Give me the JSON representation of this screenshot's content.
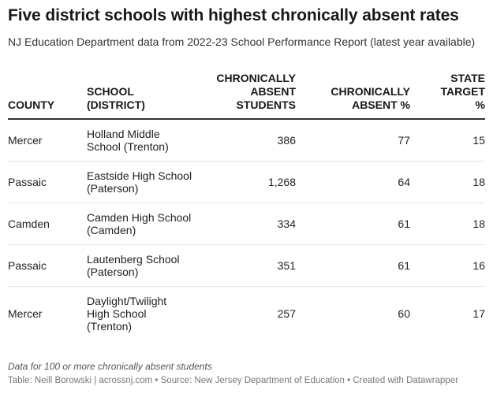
{
  "title": "Five district schools with highest chronically absent rates",
  "subtitle": "NJ Education Department data from 2022-23 School Performance Report (latest year available)",
  "table": {
    "headers": {
      "county": "COUNTY",
      "school": "SCHOOL (DISTRICT)",
      "absent_students": "CHRONICALLY ABSENT STUDENTS",
      "absent_pct": "CHRONICALLY ABSENT %",
      "state_target": "STATE TARGET %"
    },
    "rows": [
      {
        "county": "Mercer",
        "school": "Holland Middle School (Trenton)",
        "absent_students": "386",
        "absent_pct": "77",
        "state_target": "15"
      },
      {
        "county": "Passaic",
        "school": "Eastside High School (Paterson)",
        "absent_students": "1,268",
        "absent_pct": "64",
        "state_target": "18"
      },
      {
        "county": "Camden",
        "school": "Camden High School (Camden)",
        "absent_students": "334",
        "absent_pct": "61",
        "state_target": "18"
      },
      {
        "county": "Passaic",
        "school": "Lautenberg School (Paterson)",
        "absent_students": "351",
        "absent_pct": "61",
        "state_target": "16"
      },
      {
        "county": "Mercer",
        "school": "Daylight/Twilight High School (Trenton)",
        "absent_students": "257",
        "absent_pct": "60",
        "state_target": "17"
      }
    ]
  },
  "notes": "Data for 100 or more chronically absent students",
  "credit": "Table: Neill Borowski | acrossnj.com • Source: New Jersey Department of Education • Created with Datawrapper"
}
